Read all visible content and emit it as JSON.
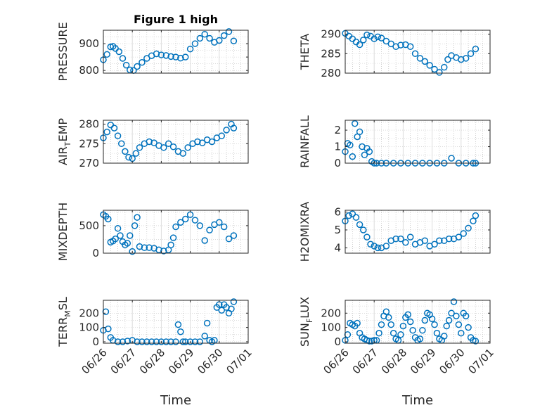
{
  "figure": {
    "title": "Figure 1 high",
    "xlabel": "Time",
    "marker_color": "#0072bd",
    "x_ticks": [
      "06/26",
      "06/27",
      "06/28",
      "06/29",
      "06/30",
      "07/01"
    ]
  },
  "chart_data": [
    {
      "type": "scatter",
      "title": "Figure 1 high",
      "ylabel": "PRESSURE",
      "ylabel_sub": "",
      "ylabel_tail": "",
      "xlabel": "",
      "xlim": [
        "06/26 00:00",
        "07/01 00:00"
      ],
      "ylim": [
        790,
        950
      ],
      "yticks": [
        800,
        850,
        900
      ],
      "ytick_labels": [
        "800",
        "",
        "900"
      ],
      "grid": true,
      "x": [
        0,
        3,
        6,
        8,
        10,
        13,
        16,
        19,
        22,
        25,
        28,
        32,
        36,
        40,
        44,
        48,
        52,
        56,
        60,
        64,
        68,
        72,
        76,
        80,
        84,
        88,
        92,
        96,
        100,
        104,
        108
      ],
      "y": [
        840,
        860,
        888,
        890,
        882,
        870,
        845,
        820,
        802,
        800,
        815,
        830,
        845,
        855,
        862,
        858,
        856,
        852,
        850,
        846,
        850,
        880,
        900,
        920,
        935,
        920,
        905,
        912,
        930,
        945,
        910
      ]
    },
    {
      "type": "scatter",
      "title": "",
      "ylabel": "THETA",
      "ylabel_sub": "",
      "ylabel_tail": "",
      "xlabel": "",
      "xlim": [
        "06/26 00:00",
        "07/01 00:00"
      ],
      "ylim": [
        280,
        291
      ],
      "yticks": [
        280,
        285,
        290
      ],
      "ytick_labels": [
        "280",
        "285",
        "290"
      ],
      "grid": true,
      "x": [
        0,
        3,
        6,
        9,
        12,
        15,
        18,
        21,
        24,
        27,
        30,
        34,
        38,
        42,
        46,
        50,
        54,
        58,
        62,
        66,
        70,
        74,
        78,
        82,
        85,
        88,
        92,
        96,
        100,
        104,
        108
      ],
      "y": [
        290.2,
        289.5,
        288.8,
        288.0,
        287.3,
        288.5,
        289.8,
        289.5,
        288.8,
        289.3,
        289.0,
        288.2,
        287.5,
        286.8,
        287.2,
        287.3,
        286.8,
        285.0,
        283.8,
        283.0,
        282.0,
        281.0,
        280.2,
        281.5,
        283.5,
        284.5,
        284.0,
        283.5,
        283.8,
        285.0,
        286.2
      ]
    },
    {
      "type": "scatter",
      "title": "",
      "ylabel": "AIR",
      "ylabel_sub": "T",
      "ylabel_tail": "EMP",
      "xlabel": "",
      "xlim": [
        "06/26 00:00",
        "07/01 00:00"
      ],
      "ylim": [
        270,
        281
      ],
      "yticks": [
        270,
        275,
        280
      ],
      "ytick_labels": [
        "270",
        "275",
        "280"
      ],
      "grid": true,
      "x": [
        0,
        3,
        6,
        9,
        12,
        15,
        18,
        21,
        24,
        27,
        30,
        34,
        38,
        42,
        46,
        50,
        54,
        58,
        62,
        66,
        70,
        74,
        78,
        82,
        86,
        90,
        94,
        98,
        102,
        106,
        108
      ],
      "y": [
        276.5,
        278.0,
        279.8,
        279.0,
        277.0,
        275.0,
        273.0,
        271.5,
        271.2,
        272.5,
        274.0,
        275.0,
        275.5,
        275.2,
        274.5,
        274.0,
        275.0,
        274.2,
        273.0,
        272.5,
        274.0,
        275.0,
        275.5,
        275.2,
        276.0,
        275.5,
        276.5,
        277.0,
        278.5,
        280.0,
        279.0
      ]
    },
    {
      "type": "scatter",
      "title": "",
      "ylabel": "RAINFALL",
      "ylabel_sub": "",
      "ylabel_tail": "",
      "xlabel": "",
      "xlim": [
        "06/26 00:00",
        "07/01 00:00"
      ],
      "ylim": [
        0,
        2.6
      ],
      "yticks": [
        0,
        1,
        2
      ],
      "ytick_labels": [
        "0",
        "1",
        "2"
      ],
      "grid": true,
      "x": [
        0,
        2,
        4,
        6,
        8,
        10,
        12,
        14,
        16,
        18,
        20,
        22,
        24,
        26,
        30,
        34,
        40,
        46,
        52,
        58,
        64,
        70,
        76,
        82,
        88,
        94,
        100,
        106,
        108
      ],
      "y": [
        0.7,
        1.2,
        1.1,
        0.4,
        2.4,
        1.6,
        1.9,
        1.0,
        0.5,
        0.9,
        0.7,
        0.1,
        0.0,
        0.0,
        0.0,
        0.0,
        0.0,
        0.0,
        0.0,
        0.0,
        0.0,
        0.0,
        0.0,
        0.0,
        0.3,
        0.0,
        0.0,
        0.0,
        0.0
      ]
    },
    {
      "type": "scatter",
      "title": "",
      "ylabel": "MIXDEPTH",
      "ylabel_sub": "",
      "ylabel_tail": "",
      "xlabel": "",
      "xlim": [
        "06/26 00:00",
        "07/01 00:00"
      ],
      "ylim": [
        0,
        780
      ],
      "yticks": [
        0,
        500
      ],
      "ytick_labels": [
        "0",
        "500"
      ],
      "grid": true,
      "x": [
        0,
        2,
        4,
        6,
        8,
        10,
        12,
        14,
        16,
        18,
        20,
        22,
        24,
        26,
        28,
        30,
        34,
        38,
        42,
        46,
        50,
        54,
        56,
        58,
        60,
        64,
        68,
        72,
        76,
        80,
        84,
        88,
        92,
        96,
        100,
        104,
        108
      ],
      "y": [
        700,
        670,
        620,
        200,
        220,
        260,
        450,
        320,
        210,
        150,
        180,
        320,
        30,
        500,
        650,
        120,
        100,
        100,
        90,
        60,
        40,
        60,
        150,
        280,
        480,
        560,
        620,
        700,
        600,
        500,
        230,
        420,
        520,
        560,
        480,
        260,
        320
      ]
    },
    {
      "type": "scatter",
      "title": "",
      "ylabel": "H2OMIXRA",
      "ylabel_sub": "",
      "ylabel_tail": "",
      "xlabel": "",
      "xlim": [
        "06/26 00:00",
        "07/01 00:00"
      ],
      "ylim": [
        3.7,
        6.1
      ],
      "yticks": [
        4,
        5,
        6
      ],
      "ytick_labels": [
        "4",
        "5",
        "6"
      ],
      "grid": true,
      "x": [
        0,
        3,
        6,
        9,
        12,
        15,
        18,
        21,
        24,
        27,
        30,
        34,
        38,
        42,
        46,
        50,
        54,
        58,
        62,
        66,
        70,
        74,
        78,
        82,
        86,
        90,
        94,
        98,
        102,
        106,
        108
      ],
      "y": [
        5.5,
        5.8,
        5.9,
        5.7,
        5.3,
        5.0,
        4.6,
        4.2,
        4.1,
        4.0,
        4.0,
        4.1,
        4.4,
        4.5,
        4.5,
        4.3,
        4.6,
        4.2,
        4.3,
        4.4,
        4.1,
        4.2,
        4.4,
        4.4,
        4.5,
        4.5,
        4.6,
        4.8,
        5.1,
        5.5,
        5.8
      ]
    },
    {
      "type": "scatter",
      "title": "",
      "ylabel": "TERR",
      "ylabel_sub": "M",
      "ylabel_tail": "SL",
      "xlabel": "",
      "xlim": [
        "06/26 00:00",
        "07/01 00:00"
      ],
      "ylim": [
        -10,
        290
      ],
      "yticks": [
        0,
        100,
        200
      ],
      "ytick_labels": [
        "0",
        "100",
        "200"
      ],
      "grid": true,
      "x": [
        0,
        2,
        4,
        6,
        8,
        12,
        16,
        20,
        24,
        28,
        32,
        36,
        40,
        44,
        48,
        52,
        56,
        60,
        62,
        64,
        66,
        68,
        72,
        76,
        80,
        84,
        86,
        88,
        90,
        92,
        94,
        96,
        98,
        100,
        102,
        104,
        106,
        108
      ],
      "y": [
        80,
        210,
        90,
        30,
        10,
        0,
        0,
        5,
        10,
        0,
        0,
        0,
        0,
        0,
        0,
        0,
        0,
        0,
        120,
        70,
        0,
        0,
        0,
        0,
        0,
        40,
        130,
        10,
        0,
        10,
        240,
        260,
        220,
        260,
        240,
        200,
        230,
        280
      ]
    },
    {
      "type": "scatter",
      "title": "",
      "ylabel": "SUN",
      "ylabel_sub": "F",
      "ylabel_tail": "LUX",
      "xlabel": "Time",
      "xlim": [
        "06/26 00:00",
        "07/01 00:00"
      ],
      "ylim": [
        -10,
        290
      ],
      "yticks": [
        0,
        100,
        200
      ],
      "ytick_labels": [
        "0",
        "100",
        "200"
      ],
      "grid": true,
      "x": [
        0,
        2,
        4,
        6,
        8,
        10,
        12,
        14,
        16,
        18,
        20,
        22,
        24,
        26,
        28,
        30,
        32,
        34,
        36,
        38,
        40,
        42,
        44,
        46,
        48,
        50,
        52,
        54,
        56,
        58,
        60,
        62,
        64,
        66,
        68,
        70,
        72,
        74,
        76,
        78,
        80,
        82,
        84,
        86,
        88,
        90,
        92,
        94,
        96,
        98,
        100,
        102,
        104,
        106,
        108
      ],
      "y": [
        10,
        50,
        130,
        120,
        110,
        130,
        60,
        30,
        20,
        10,
        5,
        5,
        10,
        10,
        60,
        120,
        180,
        210,
        170,
        120,
        60,
        20,
        10,
        50,
        110,
        170,
        190,
        140,
        80,
        30,
        10,
        20,
        80,
        150,
        200,
        190,
        160,
        120,
        60,
        20,
        10,
        40,
        110,
        150,
        200,
        280,
        180,
        120,
        60,
        200,
        180,
        100,
        30,
        10,
        5
      ]
    }
  ]
}
